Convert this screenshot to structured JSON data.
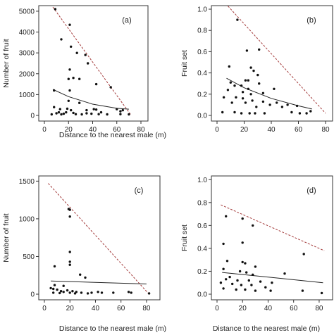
{
  "chart_data": [
    {
      "panel_label": "(a)",
      "type": "scatter",
      "xlabel": "Distance to the nearest male (m)",
      "ylabel": "Number of fruit",
      "xlim": [
        0,
        80
      ],
      "ylim": [
        0,
        5200
      ],
      "xticks": [
        "0",
        "20",
        "40",
        "60",
        "80"
      ],
      "yticks": [
        "0",
        "1000",
        "2000",
        "3000",
        "4000",
        "5000"
      ],
      "ytick_values": [
        0,
        1000,
        2000,
        3000,
        4000,
        5000
      ],
      "points": [
        [
          9,
          5100
        ],
        [
          21,
          4350
        ],
        [
          14,
          3650
        ],
        [
          22,
          3300
        ],
        [
          27,
          3000
        ],
        [
          34,
          2900
        ],
        [
          36,
          2500
        ],
        [
          21,
          2200
        ],
        [
          24,
          1800
        ],
        [
          20,
          1750
        ],
        [
          29,
          1750
        ],
        [
          21,
          1200
        ],
        [
          43,
          1500
        ],
        [
          55,
          1350
        ],
        [
          8,
          1200
        ],
        [
          20,
          700
        ],
        [
          29,
          600
        ],
        [
          8,
          400
        ],
        [
          13,
          300
        ],
        [
          19,
          320
        ],
        [
          22,
          250
        ],
        [
          35,
          250
        ],
        [
          41,
          300
        ],
        [
          43,
          280
        ],
        [
          47,
          150
        ],
        [
          60,
          300
        ],
        [
          65,
          250
        ],
        [
          63,
          200
        ],
        [
          6,
          50
        ],
        [
          10,
          100
        ],
        [
          12,
          150
        ],
        [
          14,
          50
        ],
        [
          16,
          80
        ],
        [
          18,
          150
        ],
        [
          24,
          120
        ],
        [
          26,
          60
        ],
        [
          31,
          50
        ],
        [
          35,
          100
        ],
        [
          39,
          80
        ],
        [
          45,
          60
        ],
        [
          52,
          50
        ],
        [
          63,
          60
        ],
        [
          70,
          50
        ]
      ],
      "fit_line": [
        [
          7,
          1250
        ],
        [
          20,
          900
        ],
        [
          40,
          540
        ],
        [
          60,
          340
        ],
        [
          70,
          300
        ]
      ],
      "upper_line": [
        [
          7,
          5200
        ],
        [
          72,
          0
        ]
      ]
    },
    {
      "panel_label": "(b)",
      "type": "scatter",
      "xlabel": "",
      "ylabel": "Fruit set",
      "xlim": [
        0,
        80
      ],
      "ylim": [
        0,
        1.02
      ],
      "xticks": [
        "0",
        "20",
        "40",
        "60",
        "80"
      ],
      "yticks": [
        "0.0",
        "0.2",
        "0.4",
        "0.6",
        "0.8",
        "1.0"
      ],
      "ytick_values": [
        0,
        0.2,
        0.4,
        0.6,
        0.8,
        1.0
      ],
      "points": [
        [
          15,
          0.9
        ],
        [
          31,
          0.62
        ],
        [
          22,
          0.61
        ],
        [
          9,
          0.46
        ],
        [
          25,
          0.45
        ],
        [
          27,
          0.42
        ],
        [
          30,
          0.38
        ],
        [
          10,
          0.31
        ],
        [
          21,
          0.33
        ],
        [
          23,
          0.33
        ],
        [
          13,
          0.28
        ],
        [
          18,
          0.28
        ],
        [
          23,
          0.25
        ],
        [
          8,
          0.24
        ],
        [
          31,
          0.3
        ],
        [
          19,
          0.22
        ],
        [
          25,
          0.2
        ],
        [
          34,
          0.21
        ],
        [
          42,
          0.25
        ],
        [
          5,
          0.17
        ],
        [
          14,
          0.17
        ],
        [
          19,
          0.16
        ],
        [
          26,
          0.14
        ],
        [
          34,
          0.13
        ],
        [
          52,
          0.1
        ],
        [
          59,
          0.09
        ],
        [
          11,
          0.12
        ],
        [
          21,
          0.12
        ],
        [
          29,
          0.08
        ],
        [
          39,
          0.1
        ],
        [
          44,
          0.12
        ],
        [
          48,
          0.08
        ],
        [
          4,
          0.03
        ],
        [
          13,
          0.03
        ],
        [
          18,
          0.02
        ],
        [
          24,
          0.02
        ],
        [
          28,
          0.02
        ],
        [
          35,
          0.02
        ],
        [
          55,
          0.03
        ],
        [
          61,
          0.02
        ],
        [
          66,
          0.02
        ],
        [
          69,
          0.04
        ]
      ],
      "fit_line": [
        [
          7,
          0.35
        ],
        [
          20,
          0.26
        ],
        [
          40,
          0.16
        ],
        [
          60,
          0.09
        ],
        [
          70,
          0.06
        ]
      ],
      "upper_line": [
        [
          8,
          1.03
        ],
        [
          80,
          0.02
        ]
      ]
    },
    {
      "panel_label": "(c)",
      "type": "scatter",
      "xlabel": "Distance to the nearest male (m)",
      "ylabel": "Number of fruit",
      "xlim": [
        0,
        85
      ],
      "ylim": [
        0,
        1550
      ],
      "xticks": [
        "0",
        "20",
        "40",
        "60",
        "80"
      ],
      "yticks": [
        "0",
        "500",
        "1000",
        "1500"
      ],
      "ytick_values": [
        0,
        500,
        1000,
        1500
      ],
      "points": [
        [
          19,
          1130
        ],
        [
          20,
          1120
        ],
        [
          20,
          1030
        ],
        [
          20,
          560
        ],
        [
          20,
          430
        ],
        [
          20,
          390
        ],
        [
          8,
          370
        ],
        [
          28,
          260
        ],
        [
          32,
          220
        ],
        [
          8,
          120
        ],
        [
          15,
          110
        ],
        [
          5,
          80
        ],
        [
          7,
          70
        ],
        [
          10,
          60
        ],
        [
          13,
          40
        ],
        [
          15,
          30
        ],
        [
          18,
          50
        ],
        [
          20,
          20
        ],
        [
          22,
          40
        ],
        [
          25,
          30
        ],
        [
          29,
          20
        ],
        [
          37,
          20
        ],
        [
          42,
          30
        ],
        [
          45,
          20
        ],
        [
          54,
          20
        ],
        [
          66,
          30
        ],
        [
          68,
          20
        ],
        [
          7,
          20
        ],
        [
          12,
          15
        ],
        [
          24,
          10
        ],
        [
          34,
          10
        ],
        [
          82,
          10
        ]
      ],
      "fit_line": [
        [
          5,
          175
        ],
        [
          80,
          135
        ]
      ],
      "upper_line": [
        [
          3,
          1470
        ],
        [
          82,
          0
        ]
      ]
    },
    {
      "panel_label": "(d)",
      "type": "scatter",
      "xlabel": "Distance to the nearest male (m)",
      "ylabel": "Fruit set",
      "xlim": [
        0,
        85
      ],
      "ylim": [
        0,
        1.02
      ],
      "xticks": [
        "0",
        "20",
        "40",
        "60",
        "80"
      ],
      "yticks": [
        "0.0",
        "0.2",
        "0.4",
        "0.6",
        "0.8",
        "1.0"
      ],
      "ytick_values": [
        0,
        0.2,
        0.4,
        0.6,
        0.8,
        1.0
      ],
      "points": [
        [
          20,
          0.66
        ],
        [
          28,
          0.6
        ],
        [
          7,
          0.68
        ],
        [
          68,
          0.35
        ],
        [
          20,
          0.45
        ],
        [
          5,
          0.44
        ],
        [
          8,
          0.29
        ],
        [
          20,
          0.28
        ],
        [
          22,
          0.27
        ],
        [
          30,
          0.24
        ],
        [
          5,
          0.22
        ],
        [
          18,
          0.2
        ],
        [
          23,
          0.19
        ],
        [
          28,
          0.17
        ],
        [
          53,
          0.18
        ],
        [
          10,
          0.15
        ],
        [
          7,
          0.13
        ],
        [
          16,
          0.12
        ],
        [
          25,
          0.12
        ],
        [
          34,
          0.11
        ],
        [
          43,
          0.1
        ],
        [
          3,
          0.1
        ],
        [
          12,
          0.09
        ],
        [
          19,
          0.08
        ],
        [
          27,
          0.08
        ],
        [
          38,
          0.06
        ],
        [
          5,
          0.05
        ],
        [
          15,
          0.04
        ],
        [
          22,
          0.04
        ],
        [
          30,
          0.03
        ],
        [
          42,
          0.03
        ],
        [
          67,
          0.03
        ],
        [
          82,
          0.01
        ]
      ],
      "fit_line": [
        [
          4,
          0.19
        ],
        [
          83,
          0.1
        ]
      ],
      "upper_line": [
        [
          3,
          0.78
        ],
        [
          84,
          0.38
        ]
      ]
    }
  ]
}
